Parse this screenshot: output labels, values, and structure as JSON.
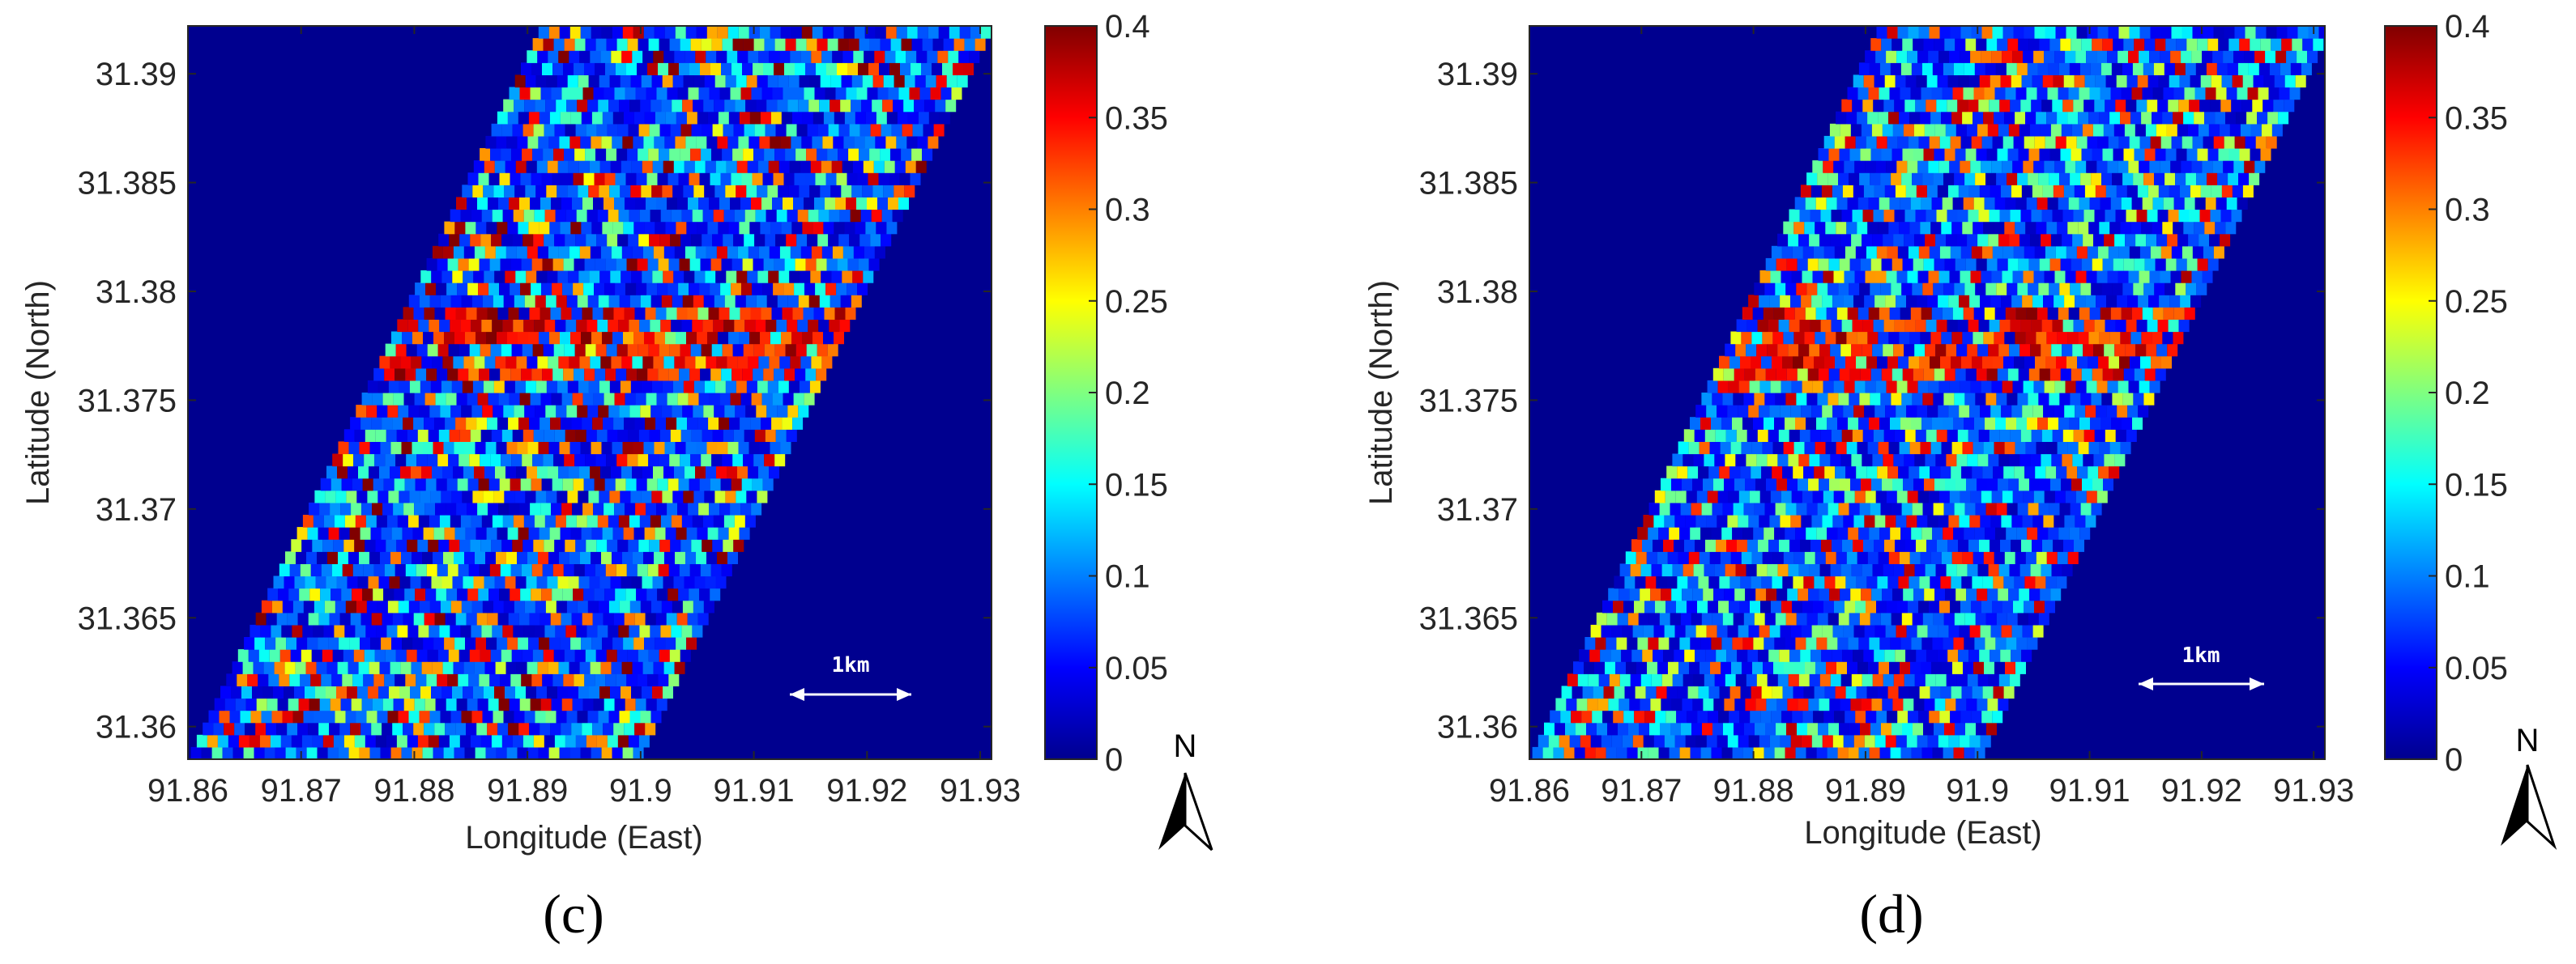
{
  "chart_data": [
    {
      "type": "heatmap",
      "panel_label": "(c)",
      "xlabel": "Longitude (East)",
      "ylabel": "Latitude (North)",
      "xlim": [
        91.86,
        91.931
      ],
      "ylim": [
        31.3585,
        31.3922
      ],
      "x_ticks": [
        "91.86",
        "91.87",
        "91.88",
        "91.89",
        "91.9",
        "91.91",
        "91.92",
        "91.93"
      ],
      "y_ticks": [
        "31.36",
        "31.365",
        "31.37",
        "31.375",
        "31.38",
        "31.385",
        "31.39"
      ],
      "colorbar": {
        "min": 0,
        "max": 0.4,
        "ticks": [
          "0",
          "0.05",
          "0.1",
          "0.15",
          "0.2",
          "0.25",
          "0.3",
          "0.35",
          "0.4"
        ],
        "colormap": "jet"
      },
      "scale_bar_label": "1km",
      "north_label": "N"
    },
    {
      "type": "heatmap",
      "panel_label": "(d)",
      "xlabel": "Longitude (East)",
      "ylabel": "Latitude (North)",
      "xlim": [
        91.86,
        91.931
      ],
      "ylim": [
        31.3585,
        31.3922
      ],
      "x_ticks": [
        "91.86",
        "91.87",
        "91.88",
        "91.89",
        "91.9",
        "91.91",
        "91.92",
        "91.93"
      ],
      "y_ticks": [
        "31.36",
        "31.365",
        "31.37",
        "31.375",
        "31.38",
        "31.385",
        "31.39"
      ],
      "colorbar": {
        "min": 0,
        "max": 0.4,
        "ticks": [
          "0",
          "0.05",
          "0.1",
          "0.15",
          "0.2",
          "0.25",
          "0.3",
          "0.35",
          "0.4"
        ],
        "colormap": "jet"
      },
      "scale_bar_label": "1km",
      "north_label": "N"
    }
  ],
  "colors": {
    "background_field": "#00008f",
    "axis": "#262626"
  }
}
